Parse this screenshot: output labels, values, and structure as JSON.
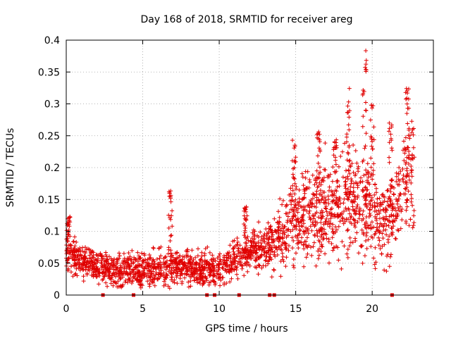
{
  "chart_data": {
    "type": "scatter",
    "title": "Day 168 of 2018, SRMTID for receiver areg",
    "xlabel": "GPS time / hours",
    "ylabel": "SRMTID / TECUs",
    "xlim": [
      0,
      24
    ],
    "ylim": [
      0,
      0.4
    ],
    "x_ticks": [
      "0",
      "5",
      "10",
      "15",
      "20"
    ],
    "x_tick_values": [
      0,
      5,
      10,
      15,
      20
    ],
    "y_ticks": [
      "0",
      "0.05",
      "0.1",
      "0.15",
      "0.2",
      "0.25",
      "0.3",
      "0.35",
      "0.4"
    ],
    "y_tick_values": [
      0,
      0.05,
      0.1,
      0.15,
      0.2,
      0.25,
      0.3,
      0.35,
      0.4
    ],
    "grid": true,
    "marker": "+",
    "color": "#e00000",
    "series": [
      {
        "name": "SRMTID",
        "trend": [
          [
            0.0,
            0.065
          ],
          [
            0.5,
            0.06
          ],
          [
            1.0,
            0.055
          ],
          [
            2.0,
            0.045
          ],
          [
            3.0,
            0.038
          ],
          [
            4.0,
            0.038
          ],
          [
            5.0,
            0.04
          ],
          [
            6.0,
            0.042
          ],
          [
            7.0,
            0.045
          ],
          [
            8.0,
            0.045
          ],
          [
            9.0,
            0.04
          ],
          [
            10.0,
            0.04
          ],
          [
            11.0,
            0.055
          ],
          [
            12.0,
            0.07
          ],
          [
            13.0,
            0.075
          ],
          [
            14.0,
            0.095
          ],
          [
            15.0,
            0.12
          ],
          [
            16.0,
            0.13
          ],
          [
            17.0,
            0.13
          ],
          [
            18.0,
            0.14
          ],
          [
            19.0,
            0.15
          ],
          [
            20.0,
            0.13
          ],
          [
            21.0,
            0.11
          ],
          [
            22.0,
            0.17
          ],
          [
            22.8,
            0.2
          ]
        ],
        "spread": [
          [
            0.0,
            0.025
          ],
          [
            2.0,
            0.02
          ],
          [
            6.0,
            0.025
          ],
          [
            10.0,
            0.022
          ],
          [
            13.0,
            0.03
          ],
          [
            14.0,
            0.05
          ],
          [
            15.0,
            0.06
          ],
          [
            17.0,
            0.065
          ],
          [
            19.0,
            0.075
          ],
          [
            20.0,
            0.065
          ],
          [
            21.0,
            0.06
          ],
          [
            22.8,
            0.075
          ]
        ],
        "peaks": [
          {
            "x": 0.15,
            "y": 0.125
          },
          {
            "x": 6.8,
            "y": 0.17
          },
          {
            "x": 11.7,
            "y": 0.14
          },
          {
            "x": 14.9,
            "y": 0.245
          },
          {
            "x": 16.5,
            "y": 0.265
          },
          {
            "x": 17.6,
            "y": 0.245
          },
          {
            "x": 18.4,
            "y": 0.325
          },
          {
            "x": 19.5,
            "y": 0.385
          },
          {
            "x": 20.0,
            "y": 0.305
          },
          {
            "x": 21.2,
            "y": 0.27
          },
          {
            "x": 22.3,
            "y": 0.325
          }
        ],
        "zero_markers_x": [
          2.4,
          4.4,
          9.2,
          9.7,
          11.3,
          13.3,
          13.6,
          21.3
        ]
      }
    ]
  }
}
